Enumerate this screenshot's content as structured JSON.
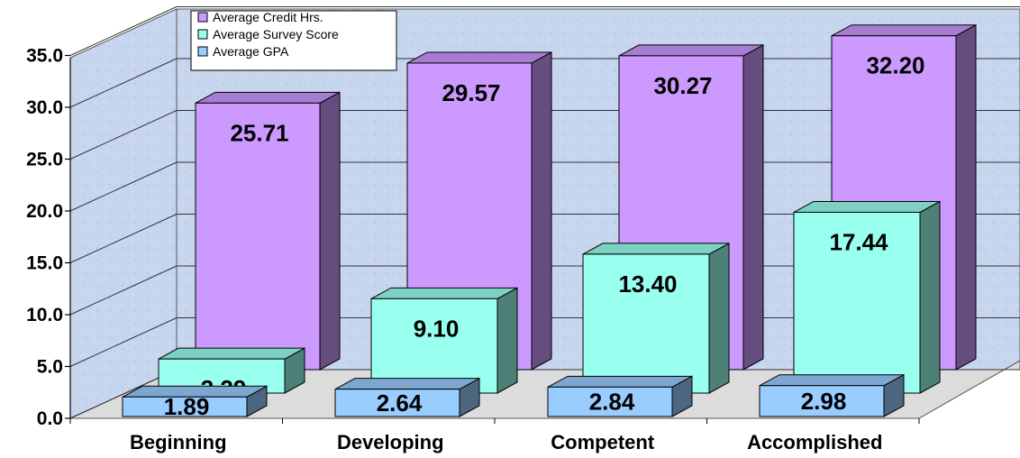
{
  "chart_data": {
    "type": "bar",
    "categories": [
      "Beginning",
      "Developing",
      "Competent",
      "Accomplished"
    ],
    "series": [
      {
        "name": "Average Credit Hrs.",
        "values": [
          25.71,
          29.57,
          30.27,
          32.2
        ],
        "labels": [
          "25.71",
          "29.57",
          "30.27",
          "32.20"
        ],
        "color": "#cc99ff"
      },
      {
        "name": "Average Survey Score",
        "values": [
          3.29,
          9.1,
          13.4,
          17.44
        ],
        "labels": [
          "3.29",
          "9.10",
          "13.40",
          "17.44"
        ],
        "color": "#99ffee"
      },
      {
        "name": "Average GPA",
        "values": [
          1.89,
          2.64,
          2.84,
          2.98
        ],
        "labels": [
          "1.89",
          "2.64",
          "2.84",
          "2.98"
        ],
        "color": "#99ccff"
      }
    ],
    "yticks": [
      "0.0",
      "5.0",
      "10.0",
      "15.0",
      "20.0",
      "25.0",
      "30.0",
      "35.0"
    ],
    "ylim": [
      0,
      35
    ],
    "grid": true,
    "legend": "top-left",
    "title": "",
    "xlabel": "",
    "ylabel": ""
  }
}
